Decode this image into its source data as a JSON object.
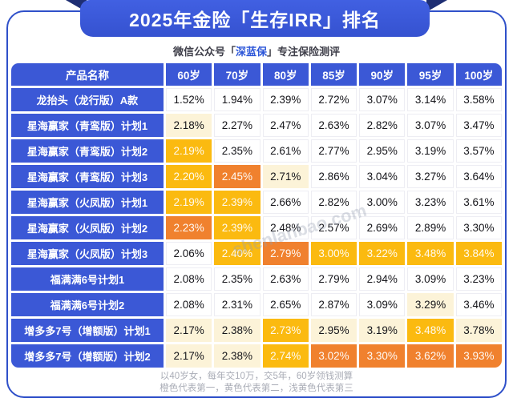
{
  "banner": {
    "title": "2025年金险「生存IRR」排名"
  },
  "subtitle": {
    "prefix": "微信公众号「",
    "brand": "深蓝保",
    "suffix": "」专注保险测评"
  },
  "watermark": {
    "text": "shenlanbao.com"
  },
  "footer": {
    "line1": "以40岁女，每年交10万，交5年，60岁领钱测算",
    "line2": "橙色代表第一，黄色代表第二，浅黄色代表第三"
  },
  "colors": {
    "blue": "#3B58D6",
    "navy": "#1E2E73",
    "border_blue": "#2F50C9",
    "orange_first": "#F0812E",
    "yellow_second": "#FBBA10",
    "light_yellow_third": "#FCF3D8"
  },
  "chart_data": {
    "type": "table",
    "title": "2025年金险「生存IRR」排名",
    "columns": [
      "产品名称",
      "60岁",
      "70岁",
      "80岁",
      "85岁",
      "90岁",
      "95岁",
      "100岁"
    ],
    "highlight_legend": {
      "o": "橙色=第一",
      "g": "黄色=第二",
      "c": "浅黄色=第三",
      "": "无名次"
    },
    "rows": [
      {
        "name": "龙抬头（龙行版）A款",
        "values": [
          "1.52%",
          "1.94%",
          "2.39%",
          "2.72%",
          "3.07%",
          "3.14%",
          "3.58%"
        ],
        "marks": [
          "",
          "",
          "",
          "",
          "",
          "",
          ""
        ]
      },
      {
        "name": "星海赢家（青鸾版）计划1",
        "values": [
          "2.18%",
          "2.27%",
          "2.47%",
          "2.63%",
          "2.82%",
          "3.07%",
          "3.47%"
        ],
        "marks": [
          "c",
          "",
          "",
          "",
          "",
          "",
          ""
        ]
      },
      {
        "name": "星海赢家（青鸾版）计划2",
        "values": [
          "2.19%",
          "2.35%",
          "2.61%",
          "2.77%",
          "2.95%",
          "3.19%",
          "3.57%"
        ],
        "marks": [
          "g",
          "",
          "",
          "",
          "",
          "",
          ""
        ]
      },
      {
        "name": "星海赢家（青鸾版）计划3",
        "values": [
          "2.20%",
          "2.45%",
          "2.71%",
          "2.86%",
          "3.04%",
          "3.27%",
          "3.64%"
        ],
        "marks": [
          "g",
          "o",
          "c",
          "",
          "",
          "",
          ""
        ]
      },
      {
        "name": "星海赢家（火凤版）计划1",
        "values": [
          "2.19%",
          "2.39%",
          "2.66%",
          "2.82%",
          "3.00%",
          "3.23%",
          "3.61%"
        ],
        "marks": [
          "g",
          "g",
          "",
          "",
          "",
          "",
          ""
        ]
      },
      {
        "name": "星海赢家（火凤版）计划2",
        "values": [
          "2.23%",
          "2.39%",
          "2.48%",
          "2.57%",
          "2.69%",
          "2.89%",
          "3.30%"
        ],
        "marks": [
          "o",
          "g",
          "",
          "",
          "",
          "",
          ""
        ]
      },
      {
        "name": "星海赢家（火凤版）计划3",
        "values": [
          "2.06%",
          "2.40%",
          "2.79%",
          "3.00%",
          "3.22%",
          "3.48%",
          "3.84%"
        ],
        "marks": [
          "",
          "g",
          "o",
          "g",
          "g",
          "g",
          "g"
        ]
      },
      {
        "name": "福满满6号计划1",
        "values": [
          "2.08%",
          "2.35%",
          "2.63%",
          "2.79%",
          "2.94%",
          "3.09%",
          "3.23%"
        ],
        "marks": [
          "",
          "",
          "",
          "",
          "",
          "",
          ""
        ]
      },
      {
        "name": "福满满6号计划2",
        "values": [
          "2.08%",
          "2.31%",
          "2.65%",
          "2.87%",
          "3.09%",
          "3.29%",
          "3.46%"
        ],
        "marks": [
          "",
          "",
          "",
          "",
          "",
          "c",
          ""
        ]
      },
      {
        "name": "增多多7号（增额版）计划1",
        "values": [
          "2.17%",
          "2.38%",
          "2.73%",
          "2.95%",
          "3.19%",
          "3.48%",
          "3.78%"
        ],
        "marks": [
          "c",
          "c",
          "g",
          "c",
          "c",
          "g",
          "c"
        ]
      },
      {
        "name": "增多多7号（增额版）计划2",
        "values": [
          "2.17%",
          "2.38%",
          "2.74%",
          "3.02%",
          "3.30%",
          "3.62%",
          "3.93%"
        ],
        "marks": [
          "c",
          "c",
          "g",
          "o",
          "o",
          "o",
          "o"
        ]
      }
    ],
    "footnote": "以40岁女，每年交10万，交5年，60岁领钱测算"
  }
}
